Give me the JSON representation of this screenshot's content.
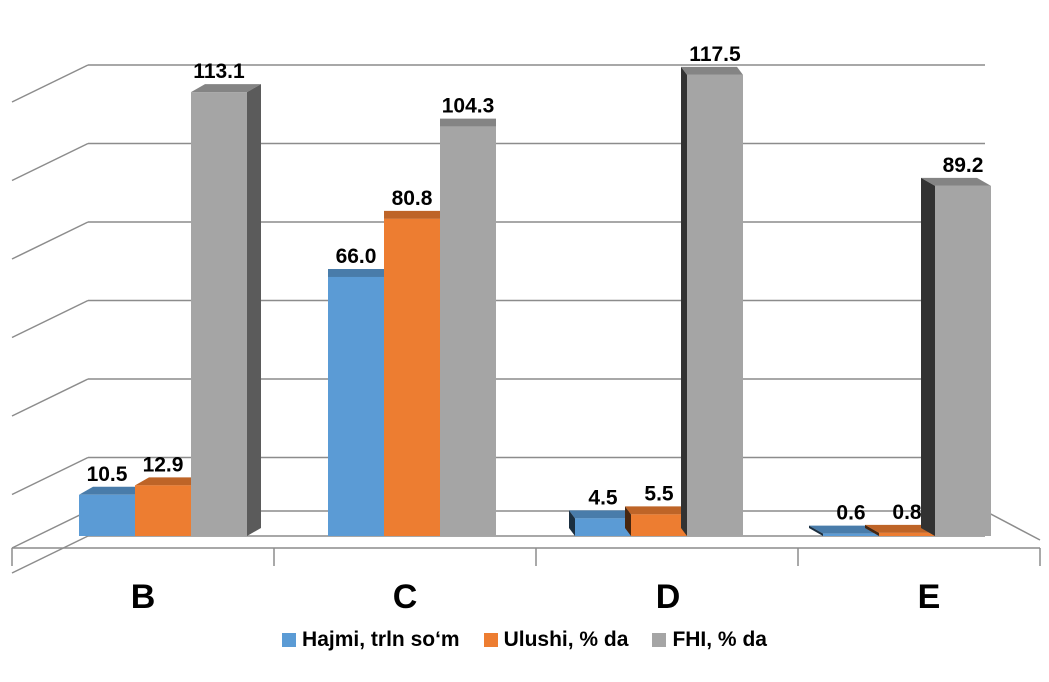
{
  "chart_data": {
    "type": "bar",
    "categories": [
      "B",
      "C",
      "D",
      "E"
    ],
    "series": [
      {
        "name": "Hajmi, trln so‘m",
        "values": [
          10.5,
          66.0,
          4.5,
          0.6
        ],
        "color": "#5B9BD5",
        "labels": [
          "10.5",
          "66.0",
          "4.5",
          "0.6"
        ]
      },
      {
        "name": "Ulushi, % da",
        "values": [
          12.9,
          80.8,
          5.5,
          0.8
        ],
        "color": "#ED7D31",
        "labels": [
          "12.9",
          "80.8",
          "5.5",
          "0.8"
        ]
      },
      {
        "name": "FHI, % da",
        "values": [
          113.1,
          104.3,
          117.5,
          89.2
        ],
        "color": "#A5A5A5",
        "labels": [
          "113.1",
          "104.3",
          "117.5",
          "89.2"
        ]
      }
    ],
    "ylim": [
      0,
      120
    ],
    "grid": true,
    "legend_position": "bottom",
    "style": "3d-clustered-column"
  }
}
